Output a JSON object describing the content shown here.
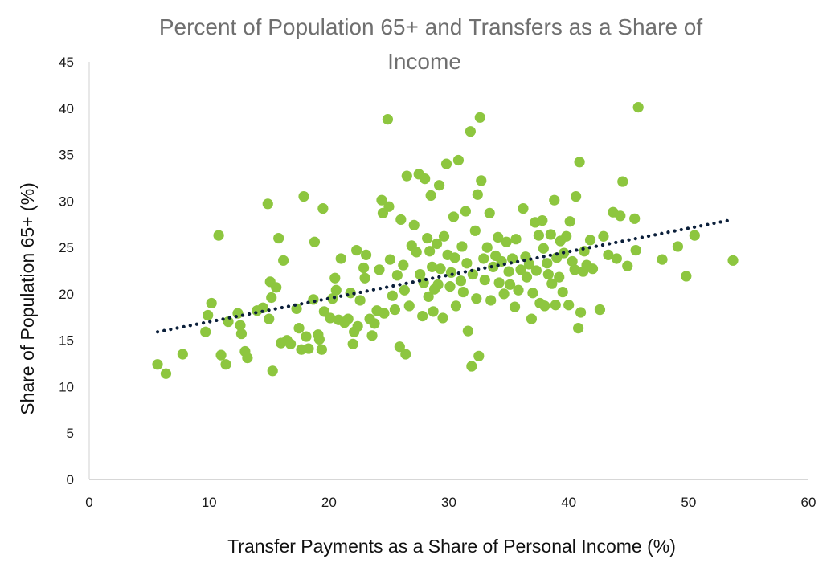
{
  "chart_data": {
    "type": "scatter",
    "title_line1": "Percent of Population 65+ and Transfers as a Share of",
    "title_line2": "Income",
    "xlabel": "Transfer Payments as a Share of Personal Income (%)",
    "ylabel": "Share of Population 65+ (%)",
    "xlim": [
      0,
      60
    ],
    "ylim": [
      0,
      45
    ],
    "x_ticks": [
      "0",
      "10",
      "20",
      "30",
      "40",
      "50",
      "60"
    ],
    "y_ticks": [
      "0",
      "5",
      "10",
      "15",
      "20",
      "25",
      "30",
      "35",
      "40",
      "45"
    ],
    "grid": false,
    "legend": "none",
    "point_color": "#8DC63F",
    "trendline": {
      "type": "linear",
      "style": "dotted",
      "color": "#0B1F3A",
      "from": [
        5.7,
        15.9
      ],
      "to": [
        53.7,
        28.0
      ]
    },
    "points": [
      [
        5.7,
        12.4
      ],
      [
        6.4,
        11.4
      ],
      [
        7.8,
        13.5
      ],
      [
        9.7,
        15.9
      ],
      [
        9.9,
        17.7
      ],
      [
        10.2,
        19.0
      ],
      [
        10.8,
        26.3
      ],
      [
        11.0,
        13.4
      ],
      [
        11.4,
        12.4
      ],
      [
        11.6,
        17.0
      ],
      [
        12.4,
        17.9
      ],
      [
        12.6,
        16.6
      ],
      [
        12.7,
        15.7
      ],
      [
        13.0,
        13.8
      ],
      [
        13.2,
        13.1
      ],
      [
        14.0,
        18.2
      ],
      [
        14.5,
        18.5
      ],
      [
        14.9,
        29.7
      ],
      [
        15.0,
        17.3
      ],
      [
        15.1,
        21.3
      ],
      [
        15.2,
        19.6
      ],
      [
        15.3,
        11.7
      ],
      [
        15.6,
        20.7
      ],
      [
        15.8,
        26.0
      ],
      [
        16.0,
        14.7
      ],
      [
        16.2,
        23.6
      ],
      [
        16.5,
        15.0
      ],
      [
        16.8,
        14.6
      ],
      [
        17.3,
        18.4
      ],
      [
        17.5,
        16.3
      ],
      [
        17.7,
        14.0
      ],
      [
        17.9,
        30.5
      ],
      [
        18.1,
        15.4
      ],
      [
        18.3,
        14.1
      ],
      [
        18.7,
        19.4
      ],
      [
        18.8,
        25.6
      ],
      [
        19.1,
        15.6
      ],
      [
        19.2,
        15.1
      ],
      [
        19.4,
        14.0
      ],
      [
        19.5,
        29.2
      ],
      [
        19.6,
        18.1
      ],
      [
        20.1,
        17.4
      ],
      [
        20.3,
        19.5
      ],
      [
        20.5,
        21.7
      ],
      [
        20.6,
        20.4
      ],
      [
        20.8,
        17.2
      ],
      [
        21.0,
        23.8
      ],
      [
        21.3,
        16.9
      ],
      [
        21.6,
        17.3
      ],
      [
        21.8,
        20.1
      ],
      [
        22.0,
        14.6
      ],
      [
        22.1,
        15.9
      ],
      [
        22.3,
        24.7
      ],
      [
        22.4,
        16.5
      ],
      [
        22.6,
        19.3
      ],
      [
        22.9,
        22.8
      ],
      [
        23.0,
        21.7
      ],
      [
        23.1,
        24.2
      ],
      [
        23.4,
        17.3
      ],
      [
        23.6,
        15.5
      ],
      [
        23.8,
        16.8
      ],
      [
        24.0,
        18.2
      ],
      [
        24.2,
        22.6
      ],
      [
        24.4,
        30.1
      ],
      [
        24.5,
        28.7
      ],
      [
        24.6,
        17.9
      ],
      [
        24.9,
        38.8
      ],
      [
        25.0,
        29.4
      ],
      [
        25.1,
        23.7
      ],
      [
        25.3,
        19.8
      ],
      [
        25.5,
        18.3
      ],
      [
        25.7,
        22.0
      ],
      [
        25.9,
        14.3
      ],
      [
        26.0,
        28.0
      ],
      [
        26.2,
        23.1
      ],
      [
        26.3,
        20.4
      ],
      [
        26.4,
        13.5
      ],
      [
        26.5,
        32.7
      ],
      [
        26.7,
        18.7
      ],
      [
        26.9,
        25.2
      ],
      [
        27.1,
        27.4
      ],
      [
        27.3,
        24.5
      ],
      [
        27.5,
        32.9
      ],
      [
        27.6,
        22.1
      ],
      [
        27.8,
        17.6
      ],
      [
        27.9,
        21.2
      ],
      [
        28.0,
        32.4
      ],
      [
        28.2,
        26.0
      ],
      [
        28.3,
        19.7
      ],
      [
        28.4,
        24.6
      ],
      [
        28.5,
        30.6
      ],
      [
        28.6,
        22.9
      ],
      [
        28.7,
        18.1
      ],
      [
        28.8,
        20.5
      ],
      [
        29.0,
        25.4
      ],
      [
        29.1,
        21.0
      ],
      [
        29.2,
        31.7
      ],
      [
        29.3,
        22.7
      ],
      [
        29.5,
        17.4
      ],
      [
        29.6,
        26.2
      ],
      [
        29.8,
        34.0
      ],
      [
        29.9,
        24.2
      ],
      [
        30.1,
        20.8
      ],
      [
        30.2,
        22.3
      ],
      [
        30.4,
        28.3
      ],
      [
        30.5,
        23.9
      ],
      [
        30.6,
        18.7
      ],
      [
        30.8,
        34.4
      ],
      [
        31.0,
        21.4
      ],
      [
        31.1,
        25.1
      ],
      [
        31.2,
        20.2
      ],
      [
        31.4,
        28.9
      ],
      [
        31.5,
        23.3
      ],
      [
        31.6,
        16.0
      ],
      [
        31.8,
        37.5
      ],
      [
        31.9,
        12.2
      ],
      [
        32.0,
        22.1
      ],
      [
        32.2,
        26.8
      ],
      [
        32.3,
        19.5
      ],
      [
        32.4,
        30.7
      ],
      [
        32.5,
        13.3
      ],
      [
        32.6,
        39.0
      ],
      [
        32.7,
        32.2
      ],
      [
        32.9,
        23.8
      ],
      [
        33.0,
        21.5
      ],
      [
        33.2,
        25.0
      ],
      [
        33.4,
        28.7
      ],
      [
        33.5,
        19.3
      ],
      [
        33.7,
        22.9
      ],
      [
        33.9,
        24.1
      ],
      [
        34.1,
        26.1
      ],
      [
        34.2,
        21.2
      ],
      [
        34.4,
        23.5
      ],
      [
        34.6,
        20.0
      ],
      [
        34.8,
        25.6
      ],
      [
        35.0,
        22.4
      ],
      [
        35.1,
        21.0
      ],
      [
        35.3,
        23.8
      ],
      [
        35.5,
        18.6
      ],
      [
        35.6,
        25.9
      ],
      [
        35.8,
        20.4
      ],
      [
        36.0,
        22.6
      ],
      [
        36.2,
        29.2
      ],
      [
        36.4,
        24.0
      ],
      [
        36.5,
        21.8
      ],
      [
        36.7,
        23.2
      ],
      [
        36.9,
        17.3
      ],
      [
        37.0,
        20.1
      ],
      [
        37.2,
        27.7
      ],
      [
        37.3,
        22.5
      ],
      [
        37.5,
        26.3
      ],
      [
        37.6,
        19.0
      ],
      [
        37.8,
        27.9
      ],
      [
        37.9,
        24.9
      ],
      [
        38.0,
        18.7
      ],
      [
        38.2,
        23.3
      ],
      [
        38.3,
        22.1
      ],
      [
        38.5,
        26.4
      ],
      [
        38.6,
        21.1
      ],
      [
        38.8,
        30.1
      ],
      [
        38.9,
        18.8
      ],
      [
        39.0,
        23.9
      ],
      [
        39.2,
        21.8
      ],
      [
        39.3,
        25.7
      ],
      [
        39.5,
        20.2
      ],
      [
        39.6,
        24.4
      ],
      [
        39.8,
        26.2
      ],
      [
        40.0,
        18.8
      ],
      [
        40.1,
        27.8
      ],
      [
        40.3,
        23.5
      ],
      [
        40.5,
        22.6
      ],
      [
        40.6,
        30.5
      ],
      [
        40.8,
        16.3
      ],
      [
        40.9,
        34.2
      ],
      [
        41.0,
        18.0
      ],
      [
        41.2,
        22.4
      ],
      [
        41.3,
        24.6
      ],
      [
        41.5,
        23.1
      ],
      [
        41.8,
        25.8
      ],
      [
        42.0,
        22.7
      ],
      [
        42.6,
        18.3
      ],
      [
        42.9,
        26.2
      ],
      [
        43.3,
        24.2
      ],
      [
        43.7,
        28.8
      ],
      [
        44.0,
        23.8
      ],
      [
        44.3,
        28.4
      ],
      [
        44.5,
        32.1
      ],
      [
        44.9,
        23.0
      ],
      [
        45.5,
        28.1
      ],
      [
        45.6,
        24.7
      ],
      [
        45.8,
        40.1
      ],
      [
        47.8,
        23.7
      ],
      [
        49.1,
        25.1
      ],
      [
        49.8,
        21.9
      ],
      [
        50.5,
        26.3
      ],
      [
        53.7,
        23.6
      ]
    ]
  }
}
